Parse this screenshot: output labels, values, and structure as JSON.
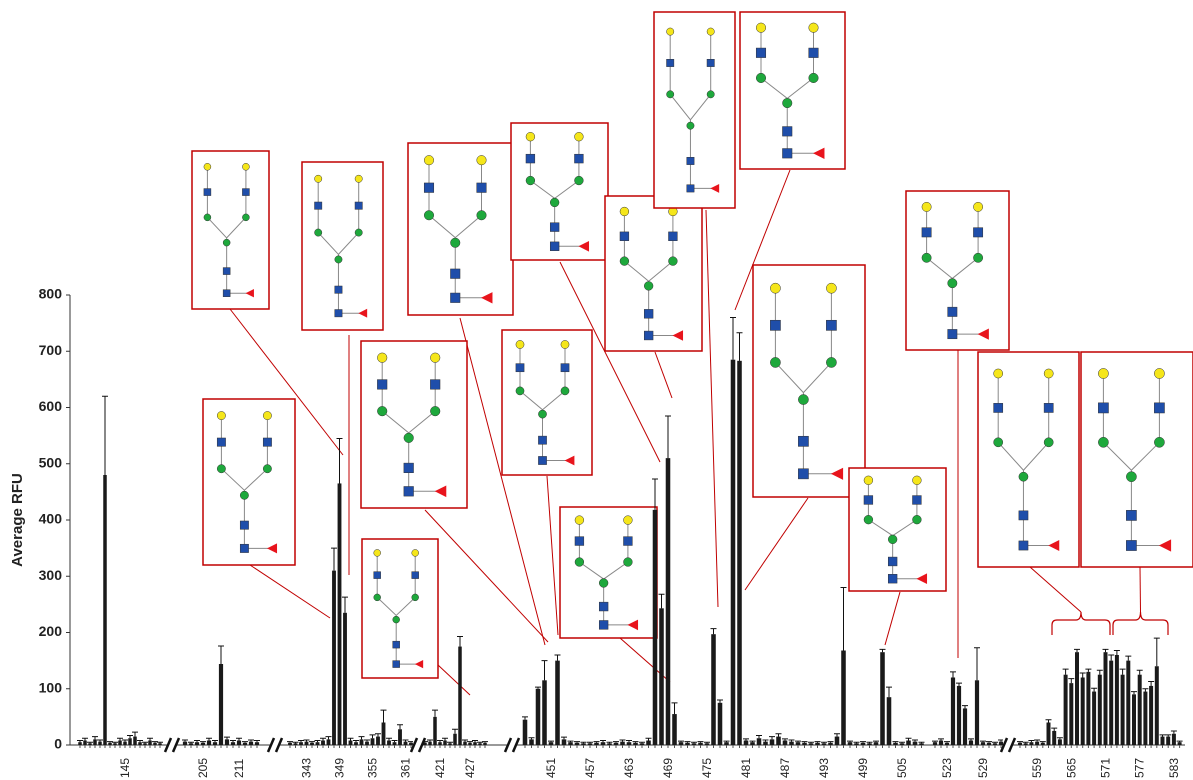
{
  "chart_data": {
    "type": "bar",
    "y_label": "Average RFU",
    "categories": [
      null,
      null,
      null,
      null,
      null,
      null,
      null,
      null,
      null,
      "145",
      null,
      null,
      null,
      null,
      null,
      null,
      null,
      null,
      null,
      null,
      "205",
      null,
      null,
      null,
      null,
      null,
      "211",
      null,
      null,
      null,
      null,
      null,
      null,
      "343",
      null,
      null,
      null,
      null,
      null,
      "349",
      null,
      null,
      null,
      null,
      null,
      "355",
      null,
      null,
      null,
      null,
      null,
      "361",
      null,
      null,
      null,
      null,
      "421",
      null,
      null,
      null,
      null,
      null,
      "427",
      null,
      null,
      null,
      null,
      null,
      null,
      null,
      "451",
      null,
      null,
      null,
      null,
      null,
      "457",
      null,
      null,
      null,
      null,
      null,
      "463",
      null,
      null,
      null,
      null,
      null,
      "469",
      null,
      null,
      null,
      null,
      null,
      "475",
      null,
      null,
      null,
      null,
      null,
      "481",
      null,
      null,
      null,
      null,
      null,
      "487",
      null,
      null,
      null,
      null,
      null,
      "493",
      null,
      null,
      null,
      null,
      null,
      "499",
      null,
      null,
      null,
      null,
      null,
      "505",
      null,
      null,
      null,
      null,
      null,
      "523",
      null,
      null,
      null,
      null,
      null,
      "529",
      null,
      null,
      null,
      null,
      null,
      null,
      "559",
      null,
      null,
      null,
      null,
      null,
      "565",
      null,
      null,
      null,
      null,
      null,
      "571",
      null,
      null,
      null,
      null,
      null,
      "577",
      null,
      null,
      null,
      null,
      null,
      "583",
      null
    ],
    "values": [
      5,
      8,
      3,
      10,
      6,
      480,
      4,
      3,
      8,
      6,
      12,
      15,
      5,
      3,
      8,
      4,
      3,
      6,
      3,
      5,
      4,
      8,
      5,
      144,
      10,
      5,
      8,
      4,
      6,
      5,
      4,
      3,
      5,
      6,
      4,
      5,
      8,
      10,
      310,
      465,
      235,
      8,
      5,
      10,
      6,
      12,
      15,
      40,
      8,
      5,
      28,
      6,
      4,
      4,
      6,
      50,
      5,
      8,
      3,
      20,
      175,
      6,
      4,
      5,
      3,
      4,
      45,
      10,
      100,
      115,
      5,
      150,
      10,
      5,
      4,
      3,
      3,
      4,
      5,
      3,
      4,
      6,
      5,
      4,
      3,
      8,
      418,
      243,
      510,
      55,
      5,
      4,
      3,
      4,
      3,
      197,
      75,
      5,
      685,
      683,
      8,
      5,
      12,
      6,
      10,
      15,
      8,
      6,
      5,
      4,
      3,
      4,
      3,
      4,
      15,
      168,
      5,
      3,
      4,
      3,
      5,
      165,
      85,
      4,
      3,
      8,
      6,
      3,
      5,
      8,
      4,
      120,
      105,
      65,
      8,
      115,
      5,
      4,
      3,
      6,
      4,
      3,
      5,
      6,
      4,
      40,
      25,
      10,
      125,
      110,
      165,
      120,
      130,
      95,
      125,
      165,
      150,
      160,
      125,
      150,
      90,
      125,
      95,
      105,
      140,
      15,
      15,
      20,
      5
    ],
    "errors": [
      3,
      4,
      2,
      5,
      3,
      140,
      2,
      2,
      4,
      3,
      5,
      8,
      3,
      2,
      4,
      2,
      2,
      3,
      2,
      3,
      2,
      4,
      3,
      32,
      4,
      3,
      4,
      2,
      3,
      3,
      2,
      2,
      3,
      3,
      2,
      3,
      4,
      5,
      40,
      80,
      28,
      4,
      3,
      5,
      3,
      6,
      5,
      22,
      4,
      3,
      8,
      3,
      2,
      2,
      3,
      12,
      3,
      4,
      2,
      8,
      18,
      3,
      2,
      3,
      2,
      2,
      5,
      3,
      3,
      35,
      2,
      10,
      4,
      2,
      2,
      2,
      2,
      2,
      3,
      2,
      2,
      3,
      3,
      2,
      2,
      4,
      55,
      25,
      75,
      20,
      2,
      2,
      2,
      2,
      2,
      10,
      5,
      2,
      75,
      50,
      3,
      2,
      5,
      3,
      5,
      5,
      3,
      3,
      2,
      2,
      2,
      2,
      2,
      2,
      5,
      112,
      2,
      2,
      2,
      2,
      2,
      5,
      18,
      2,
      2,
      4,
      3,
      2,
      2,
      3,
      2,
      10,
      5,
      5,
      3,
      58,
      2,
      2,
      2,
      3,
      2,
      2,
      3,
      3,
      2,
      5,
      5,
      3,
      10,
      8,
      5,
      8,
      5,
      6,
      8,
      5,
      10,
      8,
      10,
      8,
      5,
      8,
      5,
      8,
      50,
      3,
      3,
      5,
      2
    ],
    "color": "#1a1a1a",
    "ylim": [
      0,
      800
    ],
    "yticks": [
      0,
      100,
      200,
      300,
      400,
      500,
      600,
      700,
      800
    ],
    "grid": false
  }
}
